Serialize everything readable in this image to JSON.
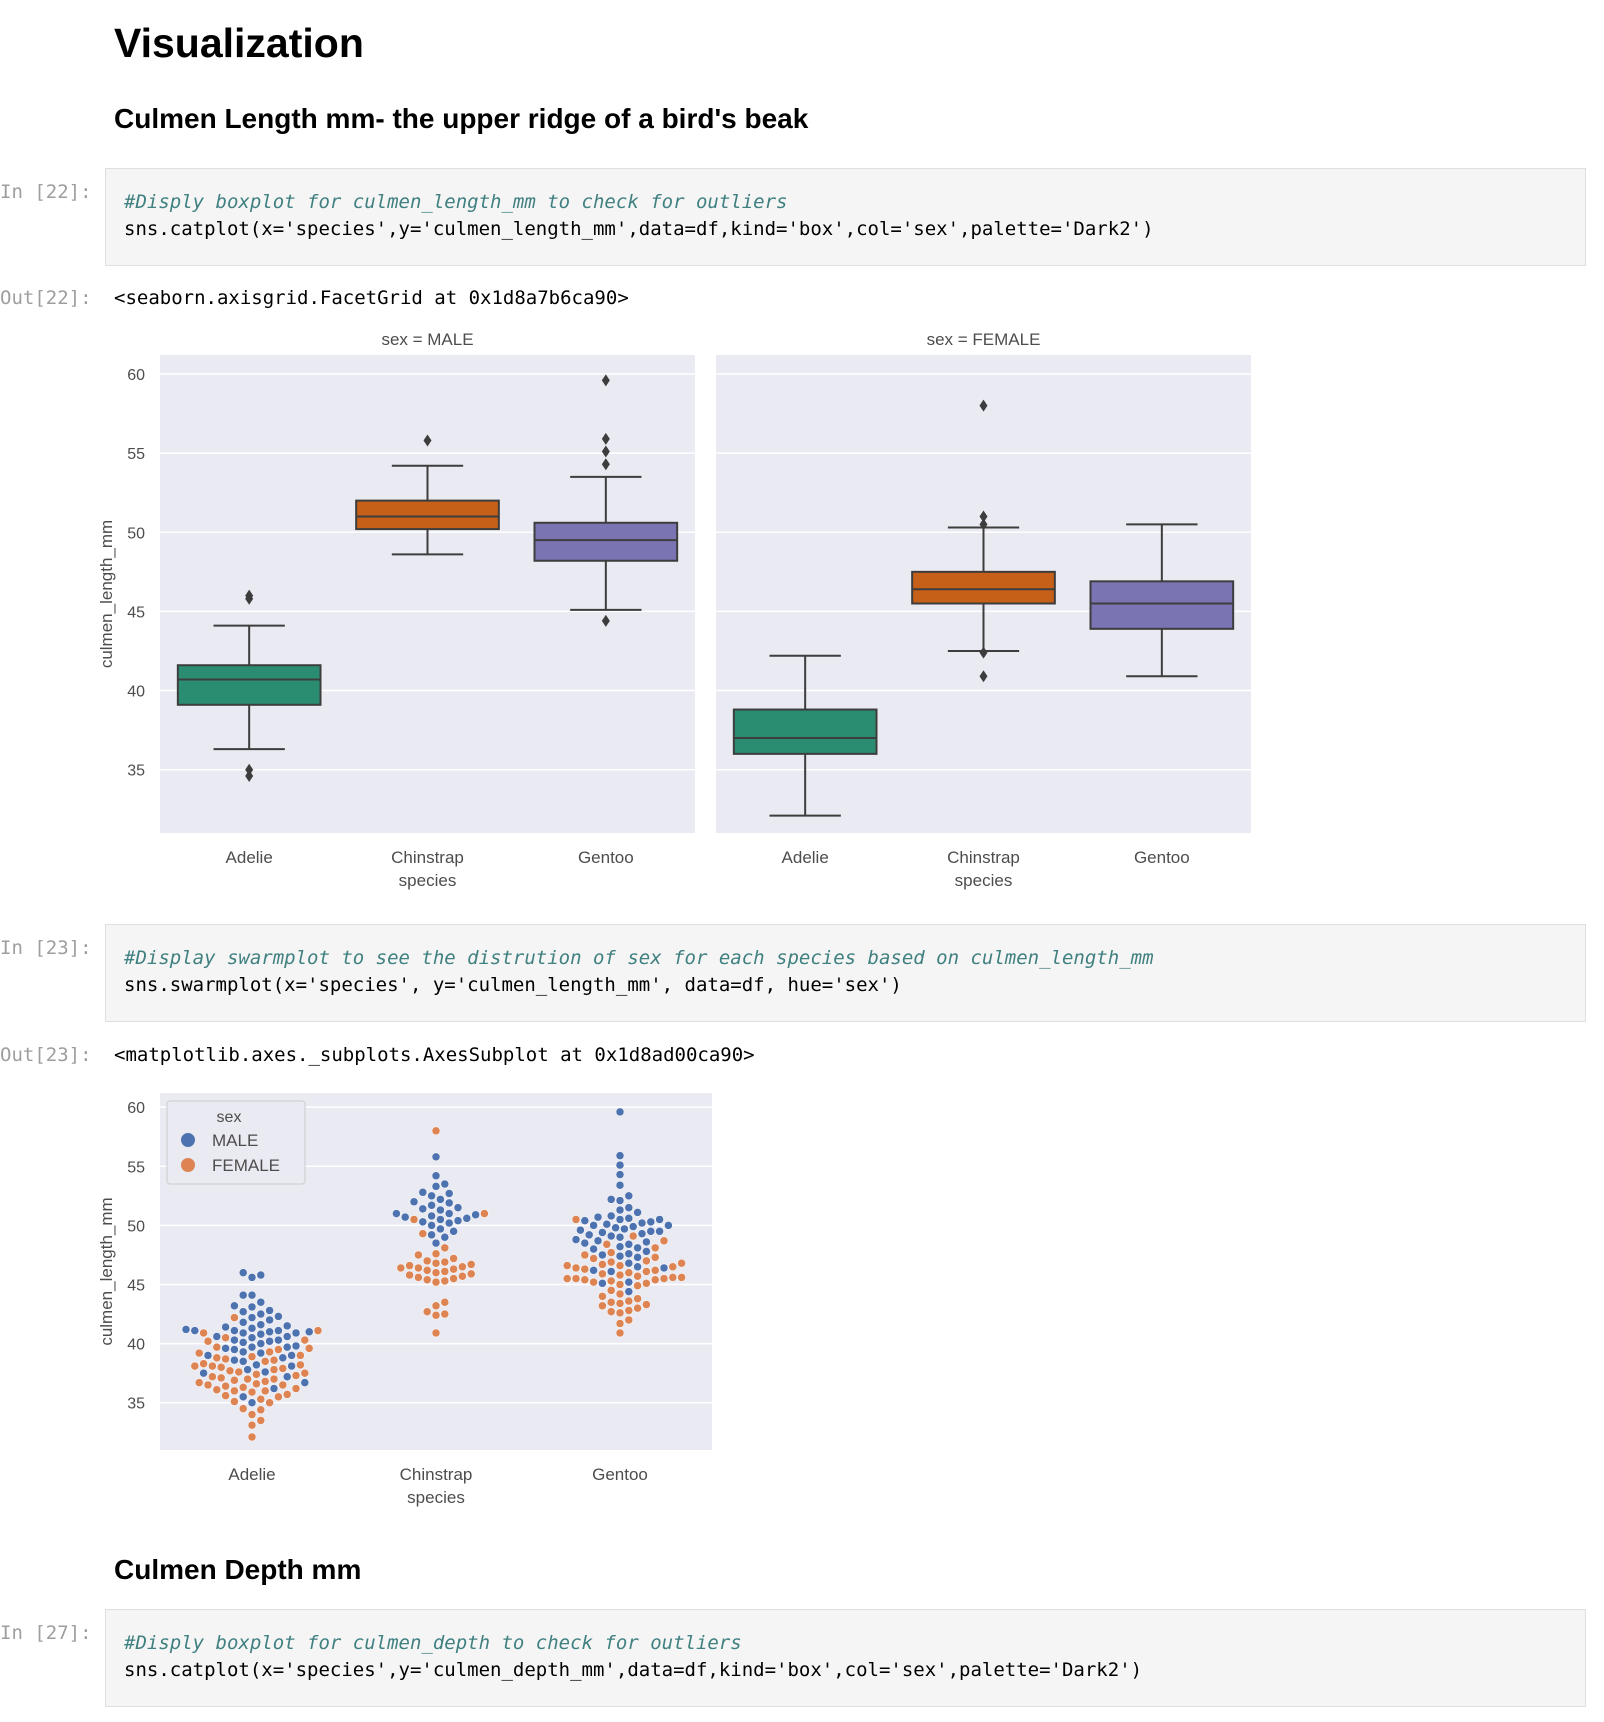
{
  "headings": {
    "main": "Visualization",
    "culmen_length": "Culmen Length mm- the upper ridge of a bird's beak",
    "culmen_depth": "Culmen Depth mm"
  },
  "cells": [
    {
      "in_prompt": "In [22]:",
      "comment": "#Disply boxplot for culmen_length_mm to check for outliers",
      "code": "sns.catplot(x='species',y='culmen_length_mm',data=df,kind='box',col='sex',palette='Dark2')",
      "out_prompt": "Out[22]:",
      "output": "<seaborn.axisgrid.FacetGrid at 0x1d8a7b6ca90>"
    },
    {
      "in_prompt": "In [23]:",
      "comment": "#Display swarmplot to see the distrution of sex for each species based on culmen_length_mm",
      "code": "sns.swarmplot(x='species', y='culmen_length_mm', data=df, hue='sex')",
      "out_prompt": "Out[23]:",
      "output": "<matplotlib.axes._subplots.AxesSubplot at 0x1d8ad00ca90>"
    },
    {
      "in_prompt": "In [27]:",
      "comment": "#Disply boxplot for culmen_depth to check for outliers",
      "code": "sns.catplot(x='species',y='culmen_depth_mm',data=df,kind='box',col='sex',palette='Dark2')"
    }
  ],
  "colors": {
    "plot_bg": "#eaeaf2",
    "grid": "#ffffff",
    "adelie_box": "#2a8d72",
    "chinstrap_box": "#c65f17",
    "gentoo_box": "#7a74b2",
    "male_dot": "#4c72b0",
    "female_dot": "#dd8452"
  },
  "chart_data": [
    {
      "type": "box",
      "panels": [
        {
          "title": "sex = MALE",
          "boxes": [
            {
              "category": "Adelie",
              "whisker_low": 36.3,
              "q1": 39.1,
              "median": 40.7,
              "q3": 41.6,
              "whisker_high": 44.1,
              "outliers": [
                34.6,
                35.0,
                45.8,
                46.0
              ]
            },
            {
              "category": "Chinstrap",
              "whisker_low": 48.6,
              "q1": 50.2,
              "median": 51.0,
              "q3": 52.0,
              "whisker_high": 54.2,
              "outliers": [
                55.8
              ]
            },
            {
              "category": "Gentoo",
              "whisker_low": 45.1,
              "q1": 48.2,
              "median": 49.5,
              "q3": 50.6,
              "whisker_high": 53.5,
              "outliers": [
                44.4,
                54.3,
                55.1,
                55.9,
                59.6
              ]
            }
          ]
        },
        {
          "title": "sex = FEMALE",
          "boxes": [
            {
              "category": "Adelie",
              "whisker_low": 32.1,
              "q1": 36.0,
              "median": 37.0,
              "q3": 38.8,
              "whisker_high": 42.2,
              "outliers": []
            },
            {
              "category": "Chinstrap",
              "whisker_low": 42.5,
              "q1": 45.5,
              "median": 46.4,
              "q3": 47.5,
              "whisker_high": 50.3,
              "outliers": [
                40.9,
                42.4,
                50.5,
                51.0,
                58.0
              ]
            },
            {
              "category": "Gentoo",
              "whisker_low": 40.9,
              "q1": 43.9,
              "median": 45.5,
              "q3": 46.9,
              "whisker_high": 50.5,
              "outliers": []
            }
          ]
        }
      ],
      "categories": [
        "Adelie",
        "Chinstrap",
        "Gentoo"
      ],
      "xlabel": "species",
      "ylabel": "culmen_length_mm",
      "yticks": [
        35,
        40,
        45,
        50,
        55,
        60
      ],
      "ylim": [
        31,
        61.2
      ]
    },
    {
      "type": "scatter",
      "subtype": "swarm",
      "categories": [
        "Adelie",
        "Chinstrap",
        "Gentoo"
      ],
      "xlabel": "species",
      "ylabel": "culmen_length_mm",
      "yticks": [
        35,
        40,
        45,
        50,
        55,
        60
      ],
      "ylim": [
        31,
        61.2
      ],
      "legend": {
        "title": "sex",
        "entries": [
          "MALE",
          "FEMALE"
        ],
        "location": "upper left"
      },
      "series": [
        {
          "name": "MALE",
          "points": {
            "Adelie": [
              35.0,
              35.5,
              36.2,
              36.7,
              37.2,
              37.6,
              37.8,
              38.1,
              38.5,
              38.6,
              38.8,
              39.0,
              39.2,
              39.3,
              39.5,
              39.6,
              39.7,
              39.8,
              40.0,
              40.1,
              40.2,
              40.3,
              40.5,
              40.6,
              40.6,
              40.8,
              40.9,
              41.0,
              41.1,
              41.1,
              41.3,
              41.4,
              41.5,
              41.6,
              41.8,
              42.0,
              42.2,
              42.3,
              42.5,
              42.7,
              42.8,
              43.1,
              43.2,
              43.5,
              44.1,
              44.1,
              45.6,
              45.8,
              46.0,
              39.7,
              40.3,
              40.9,
              41.1,
              39.0,
              38.2,
              37.5,
              41.0,
              41.2
            ],
            "Chinstrap": [
              48.5,
              49.0,
              49.2,
              49.5,
              49.7,
              50.0,
              50.2,
              50.3,
              50.5,
              50.6,
              50.7,
              50.8,
              50.9,
              51.0,
              51.3,
              51.4,
              51.5,
              51.7,
              51.9,
              52.0,
              52.2,
              52.5,
              52.7,
              52.8,
              53.3,
              53.5,
              54.2,
              55.8,
              51.0,
              50.4
            ],
            "Gentoo": [
              44.4,
              45.1,
              45.2,
              46.1,
              46.2,
              46.5,
              46.8,
              47.3,
              47.5,
              47.6,
              47.8,
              48.1,
              48.2,
              48.4,
              48.5,
              48.7,
              48.8,
              49.0,
              49.1,
              49.2,
              49.3,
              49.5,
              49.5,
              49.6,
              49.8,
              49.9,
              50.0,
              50.0,
              50.1,
              50.2,
              50.4,
              50.5,
              50.5,
              50.7,
              50.8,
              51.1,
              51.3,
              51.5,
              52.1,
              52.2,
              52.5,
              53.4,
              54.3,
              55.1,
              55.9,
              59.6,
              49.4,
              48.6,
              50.3,
              47.4,
              46.4,
              48.0,
              49.7,
              50.6
            ]
          }
        },
        {
          "name": "FEMALE",
          "points": {
            "Adelie": [
              32.1,
              33.1,
              33.5,
              34.0,
              34.4,
              34.5,
              35.0,
              35.1,
              35.3,
              35.5,
              35.7,
              35.9,
              36.0,
              36.0,
              36.2,
              36.3,
              36.4,
              36.5,
              36.6,
              36.7,
              36.8,
              36.9,
              37.0,
              37.0,
              37.2,
              37.3,
              37.5,
              37.6,
              37.7,
              37.8,
              37.9,
              38.0,
              38.1,
              38.2,
              38.3,
              38.5,
              38.6,
              38.7,
              38.8,
              38.9,
              39.0,
              39.2,
              39.5,
              39.6,
              39.7,
              40.2,
              40.3,
              40.5,
              40.9,
              41.1,
              42.2,
              36.1,
              37.1,
              38.1,
              36.5,
              35.6,
              37.4,
              39.3
            ],
            "Chinstrap": [
              40.9,
              42.4,
              42.5,
              42.7,
              43.2,
              43.5,
              45.2,
              45.4,
              45.5,
              45.6,
              45.7,
              45.9,
              46.0,
              46.1,
              46.2,
              46.4,
              46.4,
              46.5,
              46.6,
              46.7,
              46.8,
              46.9,
              47.0,
              47.5,
              47.6,
              48.1,
              49.3,
              50.5,
              51.0,
              58.0,
              45.8,
              46.3,
              47.2,
              45.3
            ],
            "Gentoo": [
              40.9,
              42.0,
              42.6,
              42.7,
              42.8,
              43.2,
              43.3,
              43.4,
              43.5,
              43.6,
              43.8,
              44.0,
              44.5,
              44.9,
              45.0,
              45.1,
              45.2,
              45.3,
              45.4,
              45.5,
              45.5,
              45.6,
              45.7,
              45.8,
              46.0,
              46.1,
              46.2,
              46.3,
              46.4,
              46.5,
              46.6,
              46.8,
              46.9,
              47.0,
              47.2,
              47.5,
              47.7,
              48.1,
              48.4,
              48.7,
              49.1,
              50.5,
              45.5,
              45.6,
              45.4,
              46.6,
              44.2,
              45.9,
              46.7,
              47.3,
              43.0,
              41.7
            ]
          }
        }
      ]
    }
  ]
}
